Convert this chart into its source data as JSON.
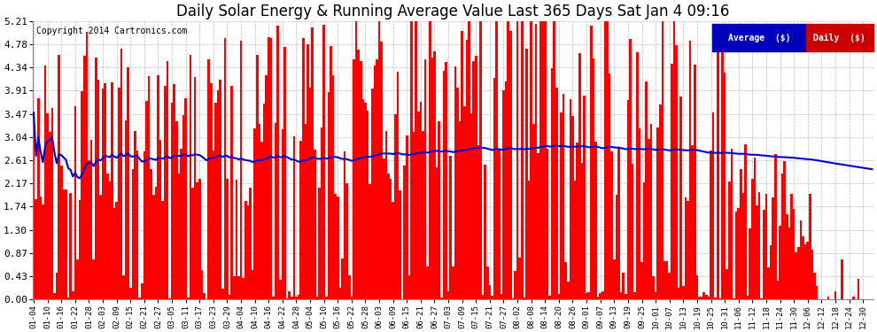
{
  "title": "Daily Solar Energy & Running Average Value Last 365 Days Sat Jan 4 09:16",
  "title_fontsize": 12,
  "copyright_text": "Copyright 2014 Cartronics.com",
  "background_color": "#ffffff",
  "plot_bg_color": "#ffffff",
  "grid_color": "#aaaaaa",
  "bar_color": "#ff0000",
  "avg_line_color": "#0000cc",
  "ylim": [
    0.0,
    5.21
  ],
  "yticks": [
    0.0,
    0.43,
    0.87,
    1.3,
    1.74,
    2.17,
    2.61,
    3.04,
    3.47,
    3.91,
    4.34,
    4.78,
    5.21
  ],
  "legend_avg_color": "#0000bb",
  "legend_daily_color": "#cc0000",
  "legend_avg_text": "Average  ($)",
  "legend_daily_text": "Daily  ($)",
  "n_days": 365,
  "tick_step": 6,
  "start_date": "2013-01-04"
}
